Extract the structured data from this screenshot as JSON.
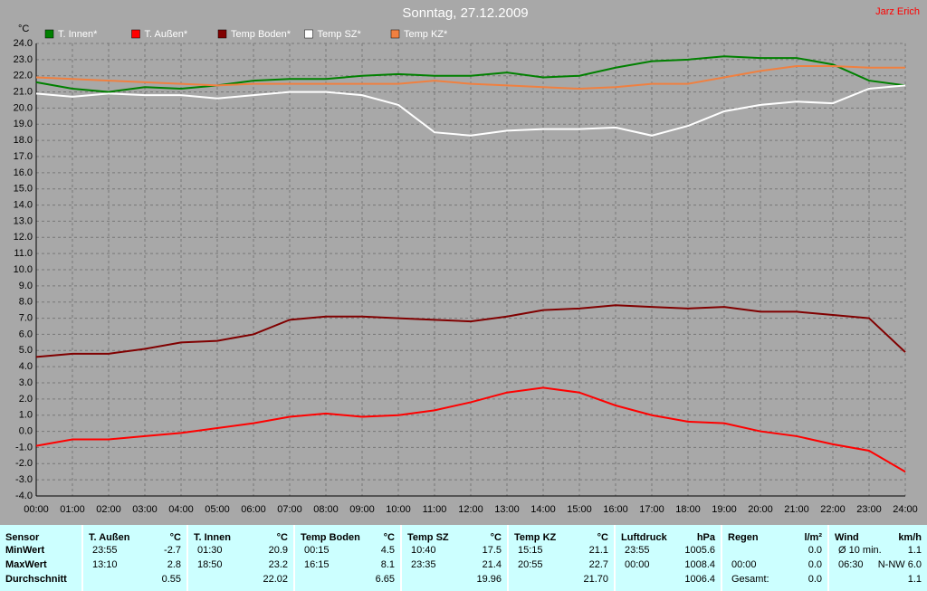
{
  "chart_data": {
    "type": "line",
    "title": "Sonntag, 27.12.2009",
    "annotation": "Jarz Erich",
    "ylabel": "°C",
    "x": [
      0,
      1,
      2,
      3,
      4,
      5,
      6,
      7,
      8,
      9,
      10,
      11,
      12,
      13,
      14,
      15,
      16,
      17,
      18,
      19,
      20,
      21,
      22,
      23,
      24
    ],
    "xlim": [
      0,
      24
    ],
    "xticks": [
      {
        "value": 0,
        "label": "00:00"
      },
      {
        "value": 1,
        "label": "01:00"
      },
      {
        "value": 2,
        "label": "02:00"
      },
      {
        "value": 3,
        "label": "03:00"
      },
      {
        "value": 4,
        "label": "04:00"
      },
      {
        "value": 5,
        "label": "05:00"
      },
      {
        "value": 6,
        "label": "06:00"
      },
      {
        "value": 7,
        "label": "07:00"
      },
      {
        "value": 8,
        "label": "08:00"
      },
      {
        "value": 9,
        "label": "09:00"
      },
      {
        "value": 10,
        "label": "10:00"
      },
      {
        "value": 11,
        "label": "11:00"
      },
      {
        "value": 12,
        "label": "12:00"
      },
      {
        "value": 13,
        "label": "13:00"
      },
      {
        "value": 14,
        "label": "14:00"
      },
      {
        "value": 15,
        "label": "15:00"
      },
      {
        "value": 16,
        "label": "16:00"
      },
      {
        "value": 17,
        "label": "17:00"
      },
      {
        "value": 18,
        "label": "18:00"
      },
      {
        "value": 19,
        "label": "19:00"
      },
      {
        "value": 20,
        "label": "20:00"
      },
      {
        "value": 21,
        "label": "21:00"
      },
      {
        "value": 22,
        "label": "22:00"
      },
      {
        "value": 23,
        "label": "23:00"
      },
      {
        "value": 24,
        "label": "24:00"
      }
    ],
    "ylim": [
      -4,
      24
    ],
    "yticks": [
      {
        "value": 24,
        "label": "24.0"
      },
      {
        "value": 23,
        "label": "23.0"
      },
      {
        "value": 22,
        "label": "22.0"
      },
      {
        "value": 21,
        "label": "21.0"
      },
      {
        "value": 20,
        "label": "20.0"
      },
      {
        "value": 19,
        "label": "19.0"
      },
      {
        "value": 18,
        "label": "18.0"
      },
      {
        "value": 17,
        "label": "17.0"
      },
      {
        "value": 16,
        "label": "16.0"
      },
      {
        "value": 15,
        "label": "15.0"
      },
      {
        "value": 14,
        "label": "14.0"
      },
      {
        "value": 13,
        "label": "13.0"
      },
      {
        "value": 12,
        "label": "12.0"
      },
      {
        "value": 11,
        "label": "11.0"
      },
      {
        "value": 10,
        "label": "10.0"
      },
      {
        "value": 9,
        "label": "9.0"
      },
      {
        "value": 8,
        "label": "8.0"
      },
      {
        "value": 7,
        "label": "7.0"
      },
      {
        "value": 6,
        "label": "6.0"
      },
      {
        "value": 5,
        "label": "5.0"
      },
      {
        "value": 4,
        "label": "4.0"
      },
      {
        "value": 3,
        "label": "3.0"
      },
      {
        "value": 2,
        "label": "2.0"
      },
      {
        "value": 1,
        "label": "1.0"
      },
      {
        "value": 0,
        "label": "0.0"
      },
      {
        "value": -1,
        "label": "-1.0"
      },
      {
        "value": -2,
        "label": "-2.0"
      },
      {
        "value": -3,
        "label": "-3.0"
      },
      {
        "value": -4,
        "label": "-4.0"
      }
    ],
    "grid": true,
    "series": [
      {
        "name": "T. Innen*",
        "color": "#008000",
        "values": [
          21.6,
          21.2,
          21.0,
          21.3,
          21.2,
          21.4,
          21.7,
          21.8,
          21.8,
          22.0,
          22.1,
          22.0,
          22.0,
          22.2,
          21.9,
          22.0,
          22.5,
          22.9,
          23.0,
          23.2,
          23.1,
          23.1,
          22.7,
          21.7,
          21.4
        ]
      },
      {
        "name": "T. Außen*",
        "color": "#ff0000",
        "values": [
          -0.9,
          -0.5,
          -0.5,
          -0.3,
          -0.1,
          0.2,
          0.5,
          0.9,
          1.1,
          0.9,
          1.0,
          1.3,
          1.8,
          2.4,
          2.7,
          2.4,
          1.6,
          1.0,
          0.6,
          0.5,
          0.0,
          -0.3,
          -0.8,
          -1.2,
          -2.5
        ]
      },
      {
        "name": "Temp Boden*",
        "color": "#800000",
        "values": [
          4.6,
          4.8,
          4.8,
          5.1,
          5.5,
          5.6,
          6.0,
          6.9,
          7.1,
          7.1,
          7.0,
          6.9,
          6.8,
          7.1,
          7.5,
          7.6,
          7.8,
          7.7,
          7.6,
          7.7,
          7.4,
          7.4,
          7.2,
          7.0,
          4.9
        ]
      },
      {
        "name": "Temp SZ*",
        "color": "#ffffff",
        "values": [
          20.9,
          20.7,
          20.9,
          20.8,
          20.8,
          20.6,
          20.8,
          21.0,
          21.0,
          20.8,
          20.2,
          18.5,
          18.3,
          18.6,
          18.7,
          18.7,
          18.8,
          18.3,
          18.9,
          19.8,
          20.2,
          20.4,
          20.3,
          21.2,
          21.4
        ]
      },
      {
        "name": "Temp KZ*",
        "color": "#f08040",
        "values": [
          21.9,
          21.8,
          21.7,
          21.6,
          21.5,
          21.4,
          21.5,
          21.5,
          21.5,
          21.5,
          21.5,
          21.7,
          21.5,
          21.4,
          21.3,
          21.2,
          21.3,
          21.5,
          21.5,
          21.9,
          22.3,
          22.6,
          22.6,
          22.5,
          22.5
        ]
      }
    ]
  },
  "table": {
    "columns": [
      {
        "name": "Sensor",
        "rows": [
          "MinWert",
          "MaxWert",
          "Durchschnitt"
        ]
      },
      {
        "name": "T. Außen",
        "unit": "°C",
        "rows": [
          [
            "23:55",
            "-2.7"
          ],
          [
            "13:10",
            "2.8"
          ],
          [
            "0.55"
          ]
        ]
      },
      {
        "name": "T. Innen",
        "unit": "°C",
        "rows": [
          [
            "01:30",
            "20.9"
          ],
          [
            "18:50",
            "23.2"
          ],
          [
            "22.02"
          ]
        ]
      },
      {
        "name": "Temp Boden",
        "unit": "°C",
        "rows": [
          [
            "00:15",
            "4.5"
          ],
          [
            "16:15",
            "8.1"
          ],
          [
            "6.65"
          ]
        ]
      },
      {
        "name": "Temp SZ",
        "unit": "°C",
        "rows": [
          [
            "10:40",
            "17.5"
          ],
          [
            "23:35",
            "21.4"
          ],
          [
            "19.96"
          ]
        ]
      },
      {
        "name": "Temp KZ",
        "unit": "°C",
        "rows": [
          [
            "15:15",
            "21.1"
          ],
          [
            "20:55",
            "22.7"
          ],
          [
            "21.70"
          ]
        ]
      },
      {
        "name": "Luftdruck",
        "unit": "hPa",
        "rows": [
          [
            "23:55",
            "1005.6"
          ],
          [
            "00:00",
            "1008.4"
          ],
          [
            "1006.4"
          ]
        ]
      },
      {
        "name": "Regen",
        "unit": "l/m²",
        "rows": [
          [
            "0.0"
          ],
          [
            "00:00",
            "0.0"
          ],
          [
            "Gesamt:",
            "0.0"
          ]
        ]
      },
      {
        "name": "Wind",
        "unit": "km/h",
        "rows": [
          [
            "Ø 10 min.",
            "1.1"
          ],
          [
            "06:30",
            "N-NW 6.0"
          ],
          [
            "1.1"
          ]
        ]
      }
    ]
  }
}
